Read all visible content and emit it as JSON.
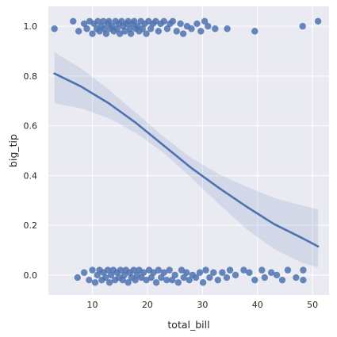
{
  "chart_data": {
    "type": "scatter",
    "title": "",
    "xlabel": "total_bill",
    "ylabel": "big_tip",
    "xlim": [
      2,
      53
    ],
    "ylim": [
      -0.08,
      1.08
    ],
    "x_ticks": [
      10,
      20,
      30,
      40,
      50
    ],
    "x_tick_labels": [
      "10",
      "20",
      "30",
      "40",
      "50"
    ],
    "y_ticks": [
      0.0,
      0.2,
      0.4,
      0.6,
      0.8,
      1.0
    ],
    "y_tick_labels": [
      "0.0",
      "0.2",
      "0.4",
      "0.6",
      "0.8",
      "1.0"
    ],
    "grid": true,
    "legend": "none",
    "colors": {
      "points": "#4c72b0",
      "fit_line": "#4c72b0",
      "ci_band": "#4c72b0",
      "background": "#eaeaf2",
      "grid": "#ffffff"
    },
    "scatter_points": [
      {
        "x": 3.1,
        "y": 0.99
      },
      {
        "x": 6.5,
        "y": 1.02
      },
      {
        "x": 7.5,
        "y": 0.98
      },
      {
        "x": 8.5,
        "y": 1.01
      },
      {
        "x": 9.0,
        "y": 0.99
      },
      {
        "x": 9.5,
        "y": 1.02
      },
      {
        "x": 10.0,
        "y": 0.97
      },
      {
        "x": 10.3,
        "y": 1.01
      },
      {
        "x": 10.8,
        "y": 0.99
      },
      {
        "x": 11.0,
        "y": 1.02
      },
      {
        "x": 11.3,
        "y": 0.98
      },
      {
        "x": 11.6,
        "y": 1.0
      },
      {
        "x": 12.0,
        "y": 1.02
      },
      {
        "x": 12.2,
        "y": 0.99
      },
      {
        "x": 12.5,
        "y": 0.97
      },
      {
        "x": 12.8,
        "y": 1.01
      },
      {
        "x": 13.0,
        "y": 1.02
      },
      {
        "x": 13.3,
        "y": 0.99
      },
      {
        "x": 13.6,
        "y": 1.0
      },
      {
        "x": 13.9,
        "y": 0.98
      },
      {
        "x": 14.2,
        "y": 1.02
      },
      {
        "x": 14.5,
        "y": 0.99
      },
      {
        "x": 14.8,
        "y": 1.01
      },
      {
        "x": 15.0,
        "y": 0.97
      },
      {
        "x": 15.3,
        "y": 1.02
      },
      {
        "x": 15.6,
        "y": 1.0
      },
      {
        "x": 15.9,
        "y": 0.98
      },
      {
        "x": 16.2,
        "y": 1.01
      },
      {
        "x": 16.5,
        "y": 1.02
      },
      {
        "x": 16.8,
        "y": 0.99
      },
      {
        "x": 17.0,
        "y": 0.97
      },
      {
        "x": 17.3,
        "y": 1.01
      },
      {
        "x": 17.6,
        "y": 1.02
      },
      {
        "x": 17.9,
        "y": 0.99
      },
      {
        "x": 18.2,
        "y": 1.0
      },
      {
        "x": 18.5,
        "y": 0.98
      },
      {
        "x": 18.8,
        "y": 1.02
      },
      {
        "x": 19.1,
        "y": 0.99
      },
      {
        "x": 19.5,
        "y": 1.01
      },
      {
        "x": 19.8,
        "y": 0.97
      },
      {
        "x": 20.2,
        "y": 1.02
      },
      {
        "x": 20.6,
        "y": 0.99
      },
      {
        "x": 21.0,
        "y": 1.01
      },
      {
        "x": 21.5,
        "y": 1.02
      },
      {
        "x": 22.0,
        "y": 0.98
      },
      {
        "x": 22.4,
        "y": 1.01
      },
      {
        "x": 23.0,
        "y": 1.02
      },
      {
        "x": 23.6,
        "y": 0.99
      },
      {
        "x": 24.1,
        "y": 1.01
      },
      {
        "x": 24.6,
        "y": 1.02
      },
      {
        "x": 25.3,
        "y": 0.98
      },
      {
        "x": 26.0,
        "y": 1.01
      },
      {
        "x": 26.5,
        "y": 0.97
      },
      {
        "x": 27.2,
        "y": 1.0
      },
      {
        "x": 28.0,
        "y": 0.99
      },
      {
        "x": 29.0,
        "y": 1.01
      },
      {
        "x": 29.7,
        "y": 0.98
      },
      {
        "x": 30.4,
        "y": 1.02
      },
      {
        "x": 31.0,
        "y": 1.0
      },
      {
        "x": 32.3,
        "y": 0.99
      },
      {
        "x": 34.5,
        "y": 0.99
      },
      {
        "x": 39.5,
        "y": 0.98
      },
      {
        "x": 48.2,
        "y": 1.0
      },
      {
        "x": 51.0,
        "y": 1.02
      },
      {
        "x": 7.3,
        "y": -0.01
      },
      {
        "x": 8.5,
        "y": 0.01
      },
      {
        "x": 9.4,
        "y": -0.02
      },
      {
        "x": 10.0,
        "y": 0.02
      },
      {
        "x": 10.5,
        "y": -0.03
      },
      {
        "x": 10.9,
        "y": 0.0
      },
      {
        "x": 11.3,
        "y": 0.02
      },
      {
        "x": 11.7,
        "y": -0.02
      },
      {
        "x": 12.0,
        "y": 0.01
      },
      {
        "x": 12.4,
        "y": -0.01
      },
      {
        "x": 12.8,
        "y": 0.02
      },
      {
        "x": 13.1,
        "y": -0.03
      },
      {
        "x": 13.4,
        "y": 0.0
      },
      {
        "x": 13.8,
        "y": 0.02
      },
      {
        "x": 14.1,
        "y": -0.02
      },
      {
        "x": 14.5,
        "y": 0.01
      },
      {
        "x": 14.8,
        "y": -0.01
      },
      {
        "x": 15.1,
        "y": 0.02
      },
      {
        "x": 15.5,
        "y": -0.02
      },
      {
        "x": 15.8,
        "y": 0.0
      },
      {
        "x": 16.1,
        "y": 0.02
      },
      {
        "x": 16.5,
        "y": -0.03
      },
      {
        "x": 16.8,
        "y": 0.01
      },
      {
        "x": 17.1,
        "y": -0.01
      },
      {
        "x": 17.5,
        "y": 0.02
      },
      {
        "x": 17.8,
        "y": -0.02
      },
      {
        "x": 18.1,
        "y": 0.0
      },
      {
        "x": 18.5,
        "y": 0.02
      },
      {
        "x": 18.9,
        "y": -0.01
      },
      {
        "x": 19.3,
        "y": 0.01
      },
      {
        "x": 19.8,
        "y": -0.02
      },
      {
        "x": 20.3,
        "y": 0.02
      },
      {
        "x": 20.7,
        "y": -0.01
      },
      {
        "x": 21.1,
        "y": 0.01
      },
      {
        "x": 21.6,
        "y": -0.03
      },
      {
        "x": 22.0,
        "y": 0.02
      },
      {
        "x": 22.5,
        "y": -0.01
      },
      {
        "x": 23.0,
        "y": 0.01
      },
      {
        "x": 23.5,
        "y": -0.02
      },
      {
        "x": 24.0,
        "y": 0.02
      },
      {
        "x": 24.5,
        "y": -0.02
      },
      {
        "x": 25.0,
        "y": 0.0
      },
      {
        "x": 25.6,
        "y": -0.03
      },
      {
        "x": 26.2,
        "y": 0.02
      },
      {
        "x": 26.6,
        "y": -0.01
      },
      {
        "x": 27.1,
        "y": 0.01
      },
      {
        "x": 27.6,
        "y": -0.02
      },
      {
        "x": 28.2,
        "y": 0.0
      },
      {
        "x": 28.8,
        "y": -0.01
      },
      {
        "x": 29.5,
        "y": 0.01
      },
      {
        "x": 30.1,
        "y": -0.03
      },
      {
        "x": 30.6,
        "y": 0.02
      },
      {
        "x": 31.3,
        "y": -0.01
      },
      {
        "x": 32.0,
        "y": 0.01
      },
      {
        "x": 32.8,
        "y": -0.02
      },
      {
        "x": 33.6,
        "y": 0.01
      },
      {
        "x": 34.4,
        "y": -0.01
      },
      {
        "x": 35.0,
        "y": 0.02
      },
      {
        "x": 36.0,
        "y": 0.0
      },
      {
        "x": 37.5,
        "y": 0.02
      },
      {
        "x": 38.5,
        "y": 0.01
      },
      {
        "x": 39.5,
        "y": -0.02
      },
      {
        "x": 40.8,
        "y": 0.02
      },
      {
        "x": 41.3,
        "y": -0.01
      },
      {
        "x": 42.5,
        "y": 0.01
      },
      {
        "x": 43.5,
        "y": 0.0
      },
      {
        "x": 44.5,
        "y": -0.02
      },
      {
        "x": 45.5,
        "y": 0.02
      },
      {
        "x": 47.0,
        "y": -0.01
      },
      {
        "x": 48.3,
        "y": 0.02
      },
      {
        "x": 48.3,
        "y": -0.02
      }
    ],
    "fit_line": {
      "x": [
        3.1,
        8,
        13,
        18,
        23,
        28,
        33,
        38,
        43,
        48,
        51
      ],
      "y": [
        0.81,
        0.757,
        0.69,
        0.61,
        0.52,
        0.43,
        0.35,
        0.275,
        0.205,
        0.15,
        0.115
      ]
    },
    "ci_band": {
      "x": [
        3.1,
        8,
        13,
        18,
        23,
        28,
        33,
        38,
        43,
        48,
        51
      ],
      "lower": [
        0.69,
        0.67,
        0.63,
        0.57,
        0.49,
        0.39,
        0.285,
        0.185,
        0.105,
        0.05,
        0.03
      ],
      "upper": [
        0.895,
        0.83,
        0.745,
        0.65,
        0.555,
        0.47,
        0.405,
        0.355,
        0.31,
        0.28,
        0.265
      ]
    }
  }
}
